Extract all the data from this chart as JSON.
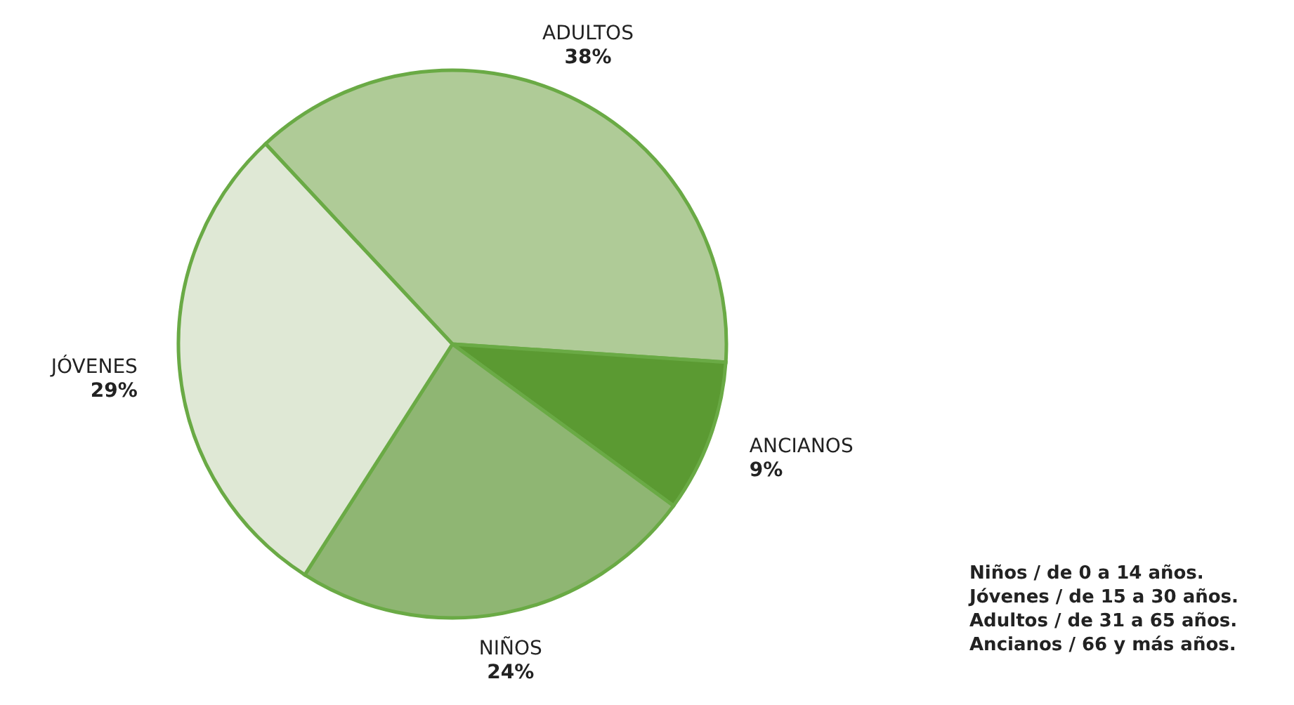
{
  "chart_data": {
    "type": "pie",
    "categories": [
      "ADULTOS",
      "ANCIANOS",
      "NIÑOS",
      "JÓVENES"
    ],
    "values": [
      38,
      9,
      24,
      29
    ],
    "colors": [
      "#afcb97",
      "#5b9a32",
      "#8fb673",
      "#dfe8d5"
    ],
    "value_labels": [
      "38%",
      "9%",
      "24%",
      "29%"
    ],
    "annotations": [
      "Niños / de 0 a 14 años.",
      "Jóvenes / de 15 a 30 años.",
      "Adultos / de 31 a 65 años.",
      "Ancianos / 66 y más años."
    ]
  }
}
